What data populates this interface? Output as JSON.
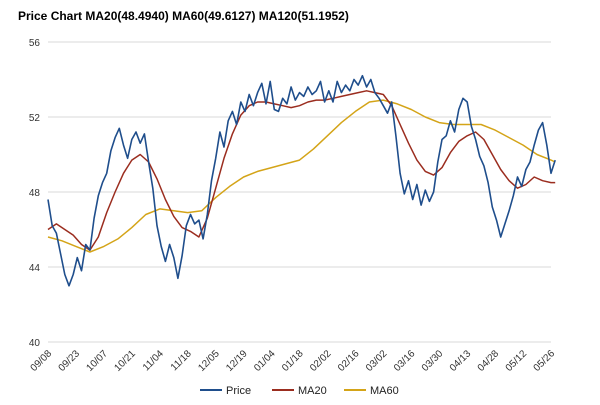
{
  "chart_data": {
    "type": "line",
    "title": "Price Chart MA20(48.4940) MA60(49.6127) MA120(51.1952)",
    "xlabel": "",
    "ylabel": "",
    "ylim": [
      40,
      56
    ],
    "yticks": [
      40,
      44,
      48,
      52,
      56
    ],
    "grid": true,
    "legend_position": "bottom",
    "categories": [
      "09/08",
      "09/23",
      "10/07",
      "10/21",
      "11/04",
      "11/18",
      "12/05",
      "12/19",
      "01/04",
      "01/18",
      "02/02",
      "02/16",
      "03/02",
      "03/16",
      "03/30",
      "04/13",
      "04/28",
      "05/12",
      "05/26"
    ],
    "colors": {
      "Price": "#1f4e8c",
      "MA20": "#9b2d1f",
      "MA60": "#d4a418"
    },
    "series": [
      {
        "name": "Price",
        "values": [
          [
            0,
            47.6
          ],
          [
            0.15,
            46.2
          ],
          [
            0.3,
            45.8
          ],
          [
            0.45,
            44.7
          ],
          [
            0.6,
            43.6
          ],
          [
            0.75,
            43.0
          ],
          [
            0.9,
            43.6
          ],
          [
            1.05,
            44.5
          ],
          [
            1.2,
            43.8
          ],
          [
            1.35,
            45.2
          ],
          [
            1.5,
            44.9
          ],
          [
            1.65,
            46.6
          ],
          [
            1.8,
            47.8
          ],
          [
            1.95,
            48.5
          ],
          [
            2.1,
            49.0
          ],
          [
            2.25,
            50.2
          ],
          [
            2.4,
            50.9
          ],
          [
            2.55,
            51.4
          ],
          [
            2.7,
            50.5
          ],
          [
            2.85,
            49.8
          ],
          [
            3.0,
            50.8
          ],
          [
            3.15,
            51.2
          ],
          [
            3.3,
            50.6
          ],
          [
            3.45,
            51.1
          ],
          [
            3.6,
            49.6
          ],
          [
            3.75,
            48.2
          ],
          [
            3.9,
            46.2
          ],
          [
            4.05,
            45.1
          ],
          [
            4.2,
            44.3
          ],
          [
            4.35,
            45.2
          ],
          [
            4.5,
            44.5
          ],
          [
            4.65,
            43.4
          ],
          [
            4.8,
            44.6
          ],
          [
            4.95,
            46.2
          ],
          [
            5.1,
            46.8
          ],
          [
            5.25,
            46.3
          ],
          [
            5.4,
            46.5
          ],
          [
            5.55,
            45.5
          ],
          [
            5.7,
            46.8
          ],
          [
            5.85,
            48.6
          ],
          [
            6.0,
            49.8
          ],
          [
            6.15,
            51.2
          ],
          [
            6.3,
            50.4
          ],
          [
            6.45,
            51.8
          ],
          [
            6.6,
            52.3
          ],
          [
            6.75,
            51.6
          ],
          [
            6.9,
            52.8
          ],
          [
            7.05,
            52.3
          ],
          [
            7.2,
            53.2
          ],
          [
            7.35,
            52.6
          ],
          [
            7.5,
            53.3
          ],
          [
            7.65,
            53.8
          ],
          [
            7.8,
            52.7
          ],
          [
            7.95,
            53.9
          ],
          [
            8.1,
            52.4
          ],
          [
            8.25,
            52.3
          ],
          [
            8.4,
            53.0
          ],
          [
            8.55,
            52.7
          ],
          [
            8.7,
            53.6
          ],
          [
            8.85,
            52.9
          ],
          [
            9.0,
            53.3
          ],
          [
            9.15,
            53.1
          ],
          [
            9.3,
            53.6
          ],
          [
            9.45,
            53.2
          ],
          [
            9.6,
            53.4
          ],
          [
            9.75,
            53.9
          ],
          [
            9.9,
            52.8
          ],
          [
            10.05,
            53.4
          ],
          [
            10.2,
            52.8
          ],
          [
            10.35,
            53.9
          ],
          [
            10.5,
            53.3
          ],
          [
            10.65,
            53.7
          ],
          [
            10.8,
            53.4
          ],
          [
            10.95,
            54.0
          ],
          [
            11.1,
            53.7
          ],
          [
            11.25,
            54.2
          ],
          [
            11.4,
            53.6
          ],
          [
            11.55,
            54.0
          ],
          [
            11.7,
            53.3
          ],
          [
            11.85,
            53.0
          ],
          [
            12.0,
            52.6
          ],
          [
            12.15,
            52.2
          ],
          [
            12.3,
            52.8
          ],
          [
            12.45,
            51.0
          ],
          [
            12.6,
            49.0
          ],
          [
            12.75,
            47.9
          ],
          [
            12.9,
            48.6
          ],
          [
            13.05,
            47.6
          ],
          [
            13.2,
            48.4
          ],
          [
            13.35,
            47.3
          ],
          [
            13.5,
            48.1
          ],
          [
            13.65,
            47.5
          ],
          [
            13.8,
            48.0
          ],
          [
            13.95,
            49.6
          ],
          [
            14.1,
            50.8
          ],
          [
            14.25,
            51.0
          ],
          [
            14.4,
            51.8
          ],
          [
            14.55,
            51.2
          ],
          [
            14.7,
            52.4
          ],
          [
            14.85,
            53.0
          ],
          [
            15.0,
            52.8
          ],
          [
            15.15,
            51.5
          ],
          [
            15.3,
            50.8
          ],
          [
            15.45,
            49.9
          ],
          [
            15.6,
            49.4
          ],
          [
            15.75,
            48.5
          ],
          [
            15.9,
            47.2
          ],
          [
            16.05,
            46.5
          ],
          [
            16.2,
            45.6
          ],
          [
            16.35,
            46.3
          ],
          [
            16.5,
            47.0
          ],
          [
            16.65,
            47.8
          ],
          [
            16.8,
            48.8
          ],
          [
            16.95,
            48.3
          ],
          [
            17.1,
            49.2
          ],
          [
            17.25,
            49.6
          ],
          [
            17.4,
            50.5
          ],
          [
            17.55,
            51.3
          ],
          [
            17.7,
            51.7
          ],
          [
            17.85,
            50.5
          ],
          [
            18.0,
            49.0
          ],
          [
            18.15,
            49.7
          ]
        ]
      },
      {
        "name": "MA20",
        "values": [
          [
            0,
            46.0
          ],
          [
            0.3,
            46.3
          ],
          [
            0.6,
            46.0
          ],
          [
            0.9,
            45.7
          ],
          [
            1.2,
            45.2
          ],
          [
            1.5,
            44.9
          ],
          [
            1.8,
            45.6
          ],
          [
            2.1,
            46.9
          ],
          [
            2.4,
            48.0
          ],
          [
            2.7,
            49.0
          ],
          [
            3.0,
            49.7
          ],
          [
            3.3,
            50.0
          ],
          [
            3.6,
            49.6
          ],
          [
            3.9,
            48.7
          ],
          [
            4.2,
            47.6
          ],
          [
            4.5,
            46.7
          ],
          [
            4.8,
            46.1
          ],
          [
            5.1,
            45.9
          ],
          [
            5.4,
            45.6
          ],
          [
            5.7,
            46.6
          ],
          [
            6.0,
            48.2
          ],
          [
            6.3,
            49.8
          ],
          [
            6.6,
            51.1
          ],
          [
            6.9,
            52.1
          ],
          [
            7.2,
            52.6
          ],
          [
            7.5,
            52.8
          ],
          [
            7.8,
            52.8
          ],
          [
            8.1,
            52.7
          ],
          [
            8.4,
            52.6
          ],
          [
            8.7,
            52.5
          ],
          [
            9.0,
            52.6
          ],
          [
            9.3,
            52.8
          ],
          [
            9.6,
            52.9
          ],
          [
            9.9,
            52.9
          ],
          [
            10.2,
            53.0
          ],
          [
            10.5,
            53.1
          ],
          [
            10.8,
            53.2
          ],
          [
            11.1,
            53.3
          ],
          [
            11.4,
            53.4
          ],
          [
            11.7,
            53.3
          ],
          [
            12.0,
            53.2
          ],
          [
            12.3,
            52.6
          ],
          [
            12.6,
            51.6
          ],
          [
            12.9,
            50.6
          ],
          [
            13.2,
            49.7
          ],
          [
            13.5,
            49.1
          ],
          [
            13.8,
            48.9
          ],
          [
            14.1,
            49.3
          ],
          [
            14.4,
            50.1
          ],
          [
            14.7,
            50.7
          ],
          [
            15.0,
            51.0
          ],
          [
            15.3,
            51.2
          ],
          [
            15.6,
            50.8
          ],
          [
            15.9,
            50.0
          ],
          [
            16.2,
            49.2
          ],
          [
            16.5,
            48.6
          ],
          [
            16.8,
            48.2
          ],
          [
            17.1,
            48.4
          ],
          [
            17.4,
            48.8
          ],
          [
            17.7,
            48.6
          ],
          [
            18.0,
            48.5
          ],
          [
            18.15,
            48.5
          ]
        ]
      },
      {
        "name": "MA60",
        "values": [
          [
            0,
            45.6
          ],
          [
            0.5,
            45.4
          ],
          [
            1.0,
            45.1
          ],
          [
            1.5,
            44.8
          ],
          [
            2.0,
            45.1
          ],
          [
            2.5,
            45.5
          ],
          [
            3.0,
            46.1
          ],
          [
            3.5,
            46.8
          ],
          [
            4.0,
            47.1
          ],
          [
            4.5,
            47.0
          ],
          [
            5.0,
            46.9
          ],
          [
            5.5,
            47.0
          ],
          [
            6.0,
            47.7
          ],
          [
            6.5,
            48.3
          ],
          [
            7.0,
            48.8
          ],
          [
            7.5,
            49.1
          ],
          [
            8.0,
            49.3
          ],
          [
            8.5,
            49.5
          ],
          [
            9.0,
            49.7
          ],
          [
            9.5,
            50.3
          ],
          [
            10.0,
            51.0
          ],
          [
            10.5,
            51.7
          ],
          [
            11.0,
            52.3
          ],
          [
            11.5,
            52.8
          ],
          [
            12.0,
            52.9
          ],
          [
            12.5,
            52.7
          ],
          [
            13.0,
            52.4
          ],
          [
            13.5,
            52.0
          ],
          [
            14.0,
            51.7
          ],
          [
            14.5,
            51.6
          ],
          [
            15.0,
            51.6
          ],
          [
            15.5,
            51.6
          ],
          [
            16.0,
            51.3
          ],
          [
            16.5,
            50.9
          ],
          [
            17.0,
            50.5
          ],
          [
            17.5,
            50.0
          ],
          [
            18.0,
            49.7
          ],
          [
            18.15,
            49.6
          ]
        ]
      }
    ]
  }
}
